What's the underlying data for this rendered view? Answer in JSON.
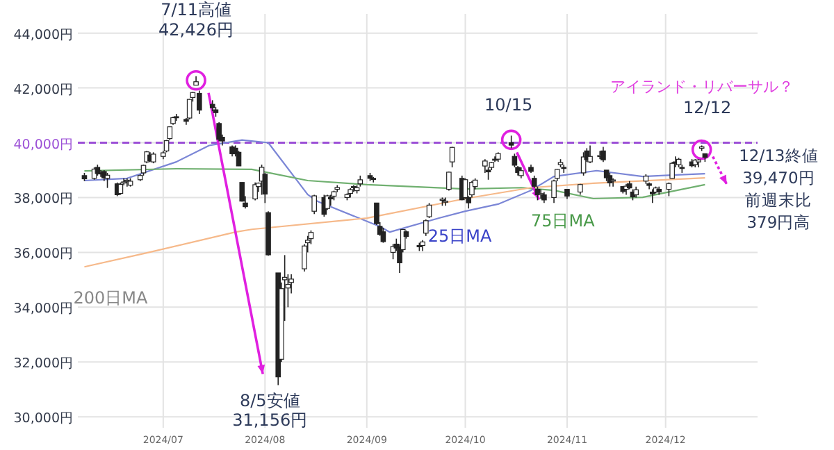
{
  "chart_data": {
    "type": "candlestick",
    "x": [
      "2024-06-07",
      "2024-06-10",
      "2024-06-11",
      "2024-06-12",
      "2024-06-13",
      "2024-06-14",
      "2024-06-17",
      "2024-06-18",
      "2024-06-19",
      "2024-06-20",
      "2024-06-21",
      "2024-06-24",
      "2024-06-25",
      "2024-06-26",
      "2024-06-27",
      "2024-06-28",
      "2024-07-01",
      "2024-07-02",
      "2024-07-03",
      "2024-07-04",
      "2024-07-05",
      "2024-07-08",
      "2024-07-09",
      "2024-07-10",
      "2024-07-11",
      "2024-07-12",
      "2024-07-16",
      "2024-07-17",
      "2024-07-18",
      "2024-07-19",
      "2024-07-22",
      "2024-07-23",
      "2024-07-24",
      "2024-07-25",
      "2024-07-26",
      "2024-07-29",
      "2024-07-30",
      "2024-07-31",
      "2024-08-01",
      "2024-08-02",
      "2024-08-05",
      "2024-08-06",
      "2024-08-07",
      "2024-08-08",
      "2024-08-09",
      "2024-08-13",
      "2024-08-14",
      "2024-08-15",
      "2024-08-16",
      "2024-08-19",
      "2024-08-20",
      "2024-08-21",
      "2024-08-22",
      "2024-08-23",
      "2024-08-26",
      "2024-08-27",
      "2024-08-28",
      "2024-08-29",
      "2024-08-30",
      "2024-09-02",
      "2024-09-03",
      "2024-09-04",
      "2024-09-05",
      "2024-09-06",
      "2024-09-09",
      "2024-09-10",
      "2024-09-11",
      "2024-09-12",
      "2024-09-13",
      "2024-09-17",
      "2024-09-18",
      "2024-09-19",
      "2024-09-20",
      "2024-09-24",
      "2024-09-25",
      "2024-09-26",
      "2024-09-27",
      "2024-09-30",
      "2024-10-01",
      "2024-10-02",
      "2024-10-03",
      "2024-10-04",
      "2024-10-07",
      "2024-10-08",
      "2024-10-09",
      "2024-10-10",
      "2024-10-11",
      "2024-10-15",
      "2024-10-16",
      "2024-10-17",
      "2024-10-18",
      "2024-10-21",
      "2024-10-22",
      "2024-10-23",
      "2024-10-24",
      "2024-10-25",
      "2024-10-28",
      "2024-10-29",
      "2024-10-30",
      "2024-10-31",
      "2024-11-01",
      "2024-11-05",
      "2024-11-06",
      "2024-11-07",
      "2024-11-08",
      "2024-11-11",
      "2024-11-12",
      "2024-11-13",
      "2024-11-14",
      "2024-11-15",
      "2024-11-18",
      "2024-11-19",
      "2024-11-20",
      "2024-11-21",
      "2024-11-22",
      "2024-11-25",
      "2024-11-26",
      "2024-11-27",
      "2024-11-28",
      "2024-11-29",
      "2024-12-02",
      "2024-12-03",
      "2024-12-04",
      "2024-12-05",
      "2024-12-06",
      "2024-12-09",
      "2024-12-10",
      "2024-12-11",
      "2024-12-12",
      "2024-12-13"
    ],
    "ohlc": [
      [
        38800,
        38900,
        38600,
        38683
      ],
      [
        38700,
        39100,
        38650,
        39038
      ],
      [
        39100,
        39200,
        38800,
        38876
      ],
      [
        38900,
        39000,
        38750,
        38877
      ],
      [
        38950,
        39000,
        38600,
        38720
      ],
      [
        38700,
        38900,
        38350,
        38814
      ],
      [
        38500,
        38550,
        38050,
        38102
      ],
      [
        38150,
        38550,
        38100,
        38482
      ],
      [
        38550,
        38700,
        38450,
        38570
      ],
      [
        38600,
        38700,
        38400,
        38633
      ],
      [
        38450,
        38700,
        38400,
        38596
      ],
      [
        38650,
        38850,
        38600,
        38804
      ],
      [
        38900,
        39200,
        38800,
        39173
      ],
      [
        39300,
        39700,
        39250,
        39667
      ],
      [
        39550,
        39650,
        39300,
        39341
      ],
      [
        39300,
        39650,
        39250,
        39583
      ],
      [
        39500,
        39700,
        39400,
        39631
      ],
      [
        39700,
        40100,
        39650,
        40074
      ],
      [
        40150,
        40600,
        40100,
        40580
      ],
      [
        40700,
        40950,
        40650,
        40913
      ],
      [
        40950,
        41050,
        40800,
        40912
      ],
      [
        40850,
        40900,
        40650,
        40780
      ],
      [
        40900,
        41600,
        40850,
        41580
      ],
      [
        41650,
        41850,
        41500,
        41831
      ],
      [
        42100,
        42426,
        42100,
        42224
      ],
      [
        41800,
        41900,
        41050,
        41190
      ],
      [
        41400,
        41550,
        41150,
        41275
      ],
      [
        41200,
        41300,
        40950,
        41097
      ],
      [
        40700,
        40750,
        40050,
        40126
      ],
      [
        40200,
        40300,
        39900,
        40063
      ],
      [
        39850,
        39900,
        39500,
        39599
      ],
      [
        39800,
        39900,
        39500,
        39594
      ],
      [
        39650,
        39700,
        39150,
        39154
      ],
      [
        38550,
        38550,
        37850,
        37869
      ],
      [
        37800,
        38050,
        37600,
        37667
      ],
      [
        37950,
        38550,
        37900,
        38468
      ],
      [
        38400,
        38550,
        38200,
        38525
      ],
      [
        38600,
        39200,
        38100,
        39101
      ],
      [
        38850,
        38900,
        37800,
        38126
      ],
      [
        37450,
        37500,
        35880,
        35909
      ],
      [
        35250,
        35250,
        31156,
        31458
      ],
      [
        32100,
        34900,
        32000,
        34675
      ],
      [
        35000,
        35900,
        33500,
        35089
      ],
      [
        34700,
        35200,
        34000,
        34831
      ],
      [
        34900,
        35200,
        34500,
        35025
      ],
      [
        35400,
        36300,
        35300,
        36232
      ],
      [
        36350,
        36600,
        36000,
        36442
      ],
      [
        36500,
        36800,
        36300,
        36726
      ],
      [
        37500,
        38100,
        37400,
        38062
      ],
      [
        38000,
        38100,
        37300,
        37388
      ],
      [
        37600,
        38100,
        37550,
        38062
      ],
      [
        38000,
        38100,
        37700,
        37951
      ],
      [
        38050,
        38250,
        37900,
        38211
      ],
      [
        38300,
        38450,
        38200,
        38364
      ],
      [
        38000,
        38150,
        37900,
        38110
      ],
      [
        38150,
        38350,
        38000,
        38288
      ],
      [
        38400,
        38450,
        38200,
        38371
      ],
      [
        38250,
        38450,
        38150,
        38362
      ],
      [
        38500,
        38800,
        38400,
        38647
      ],
      [
        38800,
        38900,
        38600,
        38700
      ],
      [
        38700,
        38750,
        38550,
        38686
      ],
      [
        37800,
        37800,
        37000,
        37047
      ],
      [
        36950,
        37100,
        36600,
        36657
      ],
      [
        36750,
        36900,
        36350,
        36391
      ],
      [
        36000,
        36300,
        35750,
        36215
      ],
      [
        36300,
        36500,
        36050,
        36159
      ],
      [
        36200,
        36300,
        35250,
        35619
      ],
      [
        36100,
        36850,
        36000,
        36833
      ],
      [
        36750,
        36800,
        36500,
        36581
      ],
      [
        36250,
        36350,
        36050,
        36203
      ],
      [
        36250,
        36450,
        36050,
        36380
      ],
      [
        36700,
        37200,
        36600,
        37155
      ],
      [
        37300,
        37800,
        37250,
        37723
      ],
      [
        37900,
        38000,
        37700,
        37940
      ],
      [
        37850,
        38000,
        37700,
        37870
      ],
      [
        38300,
        38950,
        38250,
        38925
      ],
      [
        39300,
        39850,
        39100,
        39829
      ],
      [
        38700,
        38800,
        37900,
        37919
      ],
      [
        38000,
        38700,
        37950,
        38651
      ],
      [
        38000,
        38050,
        37600,
        37808
      ],
      [
        38100,
        38600,
        38000,
        38552
      ],
      [
        38400,
        38700,
        38300,
        38635
      ],
      [
        39150,
        39400,
        38900,
        39332
      ],
      [
        39000,
        39100,
        38650,
        38937
      ],
      [
        39100,
        39300,
        39000,
        39277
      ],
      [
        39400,
        39500,
        39300,
        39380
      ],
      [
        39400,
        39650,
        39300,
        39605
      ],
      [
        40000,
        40257,
        39800,
        39910
      ],
      [
        39500,
        39600,
        39100,
        39180
      ],
      [
        39100,
        39150,
        38800,
        38911
      ],
      [
        38800,
        39100,
        38700,
        38981
      ],
      [
        39100,
        39200,
        38900,
        38954
      ],
      [
        38700,
        38800,
        38350,
        38411
      ],
      [
        38300,
        38400,
        37900,
        38104
      ],
      [
        38100,
        38300,
        37950,
        38143
      ],
      [
        38100,
        38200,
        37800,
        37913
      ],
      [
        38000,
        38650,
        37800,
        38605
      ],
      [
        38700,
        39050,
        38600,
        39027
      ],
      [
        39200,
        39400,
        39100,
        39277
      ],
      [
        39100,
        39200,
        38900,
        39081
      ],
      [
        38300,
        38300,
        37950,
        38053
      ],
      [
        38200,
        38500,
        38100,
        38474
      ],
      [
        38900,
        39650,
        38800,
        39480
      ],
      [
        39700,
        39800,
        39300,
        39381
      ],
      [
        39300,
        39900,
        39250,
        39500
      ],
      [
        39500,
        39700,
        39400,
        39533
      ],
      [
        39700,
        39850,
        39300,
        39376
      ],
      [
        39000,
        39000,
        38600,
        38721
      ],
      [
        38800,
        38900,
        38400,
        38535
      ],
      [
        38600,
        38700,
        38400,
        38642
      ],
      [
        38400,
        38400,
        38150,
        38220
      ],
      [
        38300,
        38500,
        38100,
        38414
      ],
      [
        38500,
        38600,
        38300,
        38352
      ],
      [
        38200,
        38300,
        37900,
        38026
      ],
      [
        38100,
        38400,
        38000,
        38283
      ],
      [
        38600,
        38850,
        38500,
        38780
      ],
      [
        38500,
        38550,
        38300,
        38442
      ],
      [
        38200,
        38300,
        37800,
        38134
      ],
      [
        38200,
        38400,
        38150,
        38349
      ],
      [
        38300,
        38400,
        38100,
        38208
      ],
      [
        38300,
        38550,
        38050,
        38513
      ],
      [
        38700,
        39300,
        38700,
        39248
      ],
      [
        39300,
        39500,
        39100,
        39276
      ],
      [
        39200,
        39450,
        39100,
        39395
      ],
      [
        39100,
        39200,
        38900,
        39091
      ],
      [
        39300,
        39400,
        39100,
        39160
      ],
      [
        39200,
        39400,
        39100,
        39367
      ],
      [
        39300,
        39400,
        39100,
        39372
      ],
      [
        39800,
        39900,
        39700,
        39849
      ],
      [
        39600,
        39600,
        39300,
        39470
      ]
    ],
    "series": [
      {
        "type": "line",
        "color": "#7b86d6",
        "x": [
          "2024-06-07",
          "2024-06-20",
          "2024-07-05",
          "2024-07-15",
          "2024-07-25",
          "2024-08-02",
          "2024-08-14",
          "2024-08-17",
          "2024-09-05",
          "2024-09-08",
          "2024-09-23",
          "2024-10-01",
          "2024-10-11",
          "2024-10-21",
          "2024-10-28",
          "2024-11-10",
          "2024-11-24",
          "2024-12-03",
          "2024-12-13"
        ],
        "values": [
          38620,
          38700,
          39300,
          39900,
          40100,
          40000,
          38110,
          37860,
          36940,
          36740,
          37250,
          37500,
          37760,
          38260,
          38770,
          38980,
          38770,
          38820,
          38870
        ]
      },
      {
        "type": "line",
        "color": "#70b070",
        "x": [
          "2024-06-07",
          "2024-07-05",
          "2024-07-28",
          "2024-08-14",
          "2024-09-01",
          "2024-10-01",
          "2024-10-18",
          "2024-10-28",
          "2024-11-09",
          "2024-11-24",
          "2024-12-13"
        ],
        "values": [
          38970,
          39050,
          39030,
          38620,
          38470,
          38310,
          38360,
          38260,
          37960,
          38010,
          38470
        ]
      },
      {
        "type": "line",
        "color": "#f6b98a",
        "x": [
          "2024-06-07",
          "2024-06-26",
          "2024-07-23",
          "2024-07-28",
          "2024-09-01",
          "2024-10-01",
          "2024-10-21",
          "2024-11-09",
          "2024-12-13"
        ],
        "values": [
          35470,
          35980,
          36740,
          36840,
          37250,
          37960,
          38360,
          38520,
          38720
        ]
      }
    ],
    "annotations": [
      {
        "text": "7/11高値\n42,426円",
        "x": "2024-07-11",
        "y": 42426
      },
      {
        "text": "8/5安値\n31,156円",
        "x": "2024-08-05",
        "y": 31156
      },
      {
        "text": "10/15",
        "x": "2024-10-15",
        "y": 40257
      },
      {
        "text": "12/12",
        "x": "2024-12-12",
        "y": 39900
      },
      "アイランド・リバーサル？",
      {
        "text": "12/13終値",
        "x": "2024-12-13",
        "y": 39470
      },
      {
        "text": "25日MA",
        "x": "2024-09-20",
        "y": 36740
      },
      {
        "text": "75日MA",
        "x": "2024-11-09",
        "y": 37960
      },
      {
        "text": "200日MA",
        "x": "2024-06-20",
        "y": 35800
      },
      "39,470円",
      "前週末比",
      "379円高"
    ],
    "ref_lines": [
      {
        "axis": "y",
        "value": 40000,
        "color": "#9b4fd6",
        "line_style": "dashed"
      }
    ],
    "xlim": [
      "2024-06-05",
      "2024-12-29"
    ],
    "xticks": [
      {
        "value": "2024-07-01",
        "label": "2024/07"
      },
      {
        "value": "2024-08-01",
        "label": "2024/08"
      },
      {
        "value": "2024-09-01",
        "label": "2024/09"
      },
      {
        "value": "2024-10-01",
        "label": "2024/10"
      },
      {
        "value": "2024-11-01",
        "label": "2024/11"
      },
      {
        "value": "2024-12-01",
        "label": "2024/12"
      }
    ],
    "ylim": [
      29600,
      44700
    ],
    "yticks": [
      {
        "value": 30000,
        "label": "30,000円"
      },
      {
        "value": 32000,
        "label": "32,000円"
      },
      {
        "value": 34000,
        "label": "34,000円"
      },
      {
        "value": 36000,
        "label": "36,000円"
      },
      {
        "value": 38000,
        "label": "38,000円"
      },
      {
        "value": 40000,
        "label": "40,000円"
      },
      {
        "value": 42000,
        "label": "42,000円"
      },
      {
        "value": 44000,
        "label": "44,000円"
      }
    ],
    "grid": true
  }
}
